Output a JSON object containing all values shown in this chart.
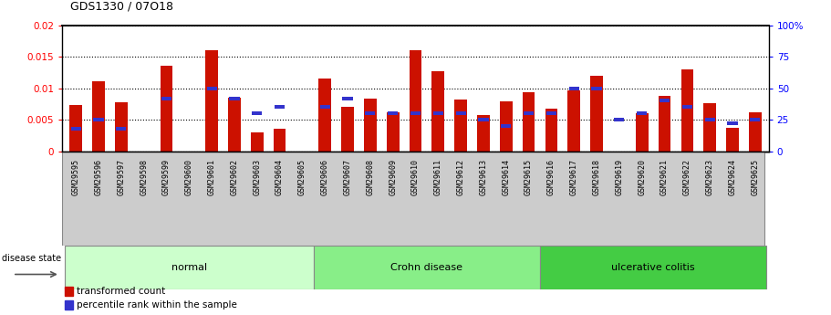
{
  "title": "GDS1330 / 07O18",
  "samples": [
    "GSM29595",
    "GSM29596",
    "GSM29597",
    "GSM29598",
    "GSM29599",
    "GSM29600",
    "GSM29601",
    "GSM29602",
    "GSM29603",
    "GSM29604",
    "GSM29605",
    "GSM29606",
    "GSM29607",
    "GSM29608",
    "GSM29609",
    "GSM29610",
    "GSM29611",
    "GSM29612",
    "GSM29613",
    "GSM29614",
    "GSM29615",
    "GSM29616",
    "GSM29617",
    "GSM29618",
    "GSM29619",
    "GSM29620",
    "GSM29621",
    "GSM29622",
    "GSM29623",
    "GSM29624",
    "GSM29625"
  ],
  "transformed_count": [
    0.0074,
    0.0111,
    0.0078,
    0.0,
    0.0135,
    0.0,
    0.016,
    0.0085,
    0.003,
    0.0035,
    0.0,
    0.0116,
    0.0071,
    0.0083,
    0.0062,
    0.016,
    0.0127,
    0.0082,
    0.0057,
    0.0079,
    0.0094,
    0.0068,
    0.0097,
    0.012,
    0.0,
    0.006,
    0.0088,
    0.013,
    0.0076,
    0.0037,
    0.0062
  ],
  "percentile_rank_pct": [
    18,
    25,
    18,
    0,
    42,
    0,
    50,
    42,
    30,
    35,
    0,
    35,
    42,
    30,
    30,
    30,
    30,
    30,
    25,
    20,
    30,
    30,
    50,
    50,
    25,
    30,
    40,
    35,
    25,
    22,
    25
  ],
  "bar_color": "#cc1100",
  "blue_color": "#3333cc",
  "ylim_left": [
    0,
    0.02
  ],
  "ylim_right": [
    0,
    100
  ],
  "yticks_left": [
    0,
    0.005,
    0.01,
    0.015,
    0.02
  ],
  "yticks_right": [
    0,
    25,
    50,
    75,
    100
  ],
  "yticklabels_left": [
    "0",
    "0.005",
    "0.01",
    "0.015",
    "0.02"
  ],
  "yticklabels_right": [
    "0",
    "25",
    "50",
    "75",
    "100%"
  ],
  "groups": [
    {
      "name": "normal",
      "start": 0,
      "end": 10,
      "color": "#ccffcc"
    },
    {
      "name": "Crohn disease",
      "start": 11,
      "end": 20,
      "color": "#88ee88"
    },
    {
      "name": "ulcerative colitis",
      "start": 21,
      "end": 30,
      "color": "#44cc44"
    }
  ],
  "xtick_bg": "#cccccc",
  "plot_bg": "#ffffff",
  "group_border_color": "#888888"
}
